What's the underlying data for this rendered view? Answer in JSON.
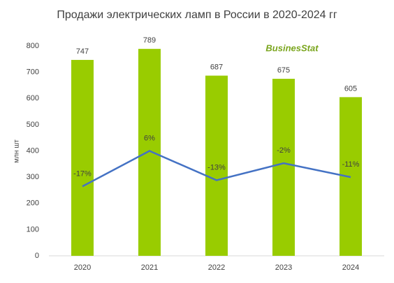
{
  "chart_data": {
    "type": "bar",
    "title": "Продажи электрических ламп в России в 2020-2024 гг",
    "y_label": "млн шт",
    "logo": "BusinesStat",
    "categories": [
      "2020",
      "2021",
      "2022",
      "2023",
      "2024"
    ],
    "series": [
      {
        "type": "bar",
        "color": "#99cc00",
        "values": [
          747,
          789,
          687,
          675,
          605
        ]
      },
      {
        "type": "line",
        "axis": "y2",
        "color": "#4472c4",
        "values": [
          -17,
          6,
          -13,
          -2,
          -11
        ],
        "value_labels": [
          "-17%",
          "6%",
          "-13%",
          "-2%",
          "-11%"
        ]
      }
    ],
    "ylim": [
      0,
      800
    ],
    "yticks": [
      0,
      100,
      200,
      300,
      400,
      500,
      600,
      700,
      800
    ],
    "y2lim": [
      -62,
      74
    ]
  }
}
